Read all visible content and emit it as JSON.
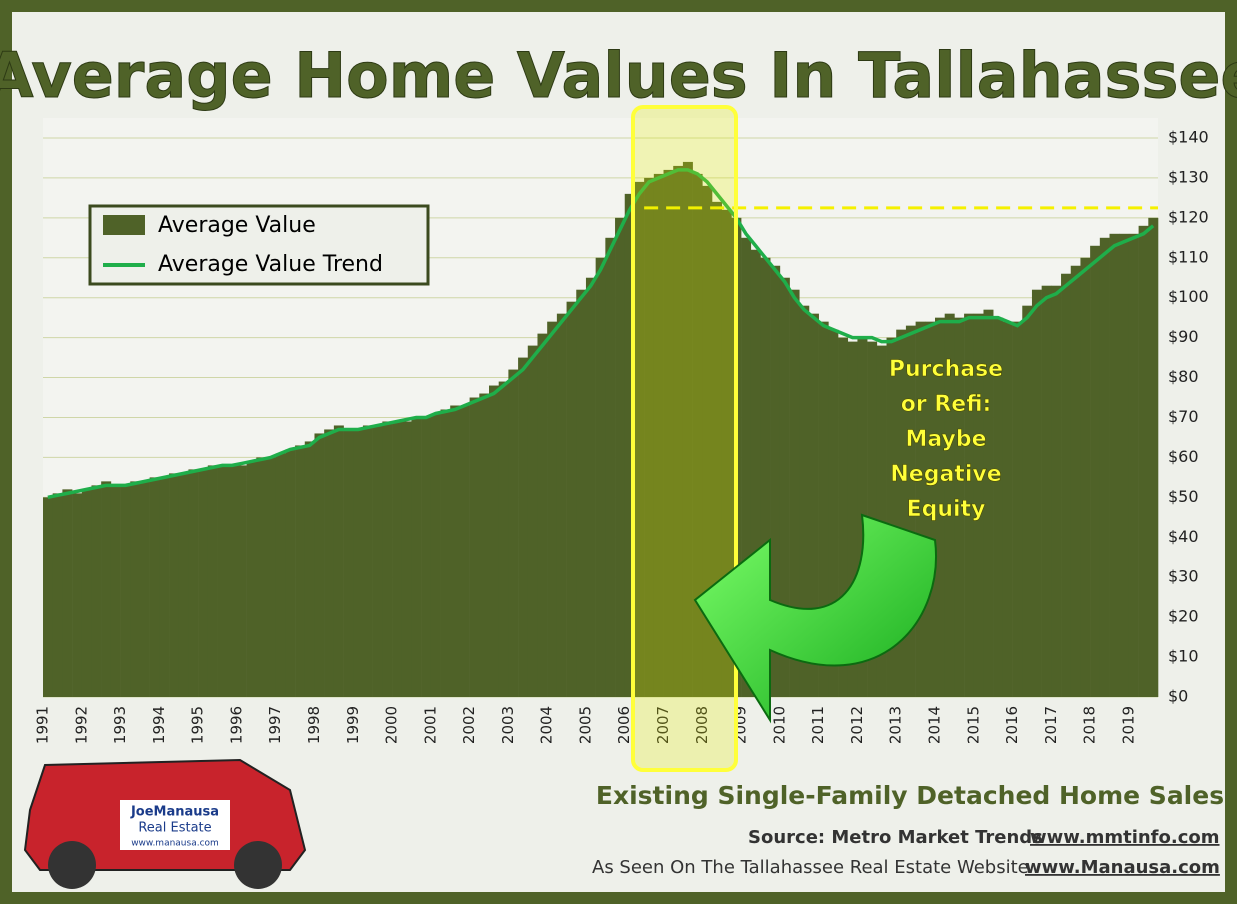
{
  "chart_data": {
    "type": "bar",
    "title": "Average Home Values In Tallahassee",
    "subtitle": "Existing Single-Family Detached Home Sales",
    "source": [
      "Source:  Metro Market Trends",
      "www.mmtinfo.com"
    ],
    "website": [
      "As Seen On The Tallahassee Real Estate Website",
      "www.Manausa.com"
    ],
    "annotation": [
      "Purchase",
      "or Refi:",
      "Maybe",
      "Negative",
      "Equity"
    ],
    "logo": [
      "JoeManausa",
      "Real Estate",
      "www.manausa.com"
    ],
    "x": [
      1991,
      1991.25,
      1991.5,
      1991.75,
      1992,
      1992.25,
      1992.5,
      1992.75,
      1993,
      1993.25,
      1993.5,
      1993.75,
      1994,
      1994.25,
      1994.5,
      1994.75,
      1995,
      1995.25,
      1995.5,
      1995.75,
      1996,
      1996.25,
      1996.5,
      1996.75,
      1997,
      1997.25,
      1997.5,
      1997.75,
      1998,
      1998.25,
      1998.5,
      1998.75,
      1999,
      1999.25,
      1999.5,
      1999.75,
      2000,
      2000.25,
      2000.5,
      2000.75,
      2001,
      2001.25,
      2001.5,
      2001.75,
      2002,
      2002.25,
      2002.5,
      2002.75,
      2003,
      2003.25,
      2003.5,
      2003.75,
      2004,
      2004.25,
      2004.5,
      2004.75,
      2005,
      2005.25,
      2005.5,
      2005.75,
      2006,
      2006.25,
      2006.5,
      2006.75,
      2007,
      2007.25,
      2007.5,
      2007.75,
      2008,
      2008.25,
      2008.5,
      2008.75,
      2009,
      2009.25,
      2009.5,
      2009.75,
      2010,
      2010.25,
      2010.5,
      2010.75,
      2011,
      2011.25,
      2011.5,
      2011.75,
      2012,
      2012.25,
      2012.5,
      2012.75,
      2013,
      2013.25,
      2013.5,
      2013.75,
      2014,
      2014.25,
      2014.5,
      2014.75,
      2015,
      2015.25,
      2015.5,
      2015.75,
      2016,
      2016.25,
      2016.5,
      2016.75,
      2017,
      2017.25,
      2017.5,
      2017.75,
      2018,
      2018.25,
      2018.5,
      2018.75,
      2019,
      2019.25,
      2019.5
    ],
    "series": [
      {
        "name": "Average Value",
        "color": "#4f6228",
        "values": [
          50,
          51,
          52,
          51,
          52,
          53,
          54,
          53,
          53,
          54,
          54,
          55,
          55,
          56,
          56,
          57,
          57,
          58,
          58,
          58,
          58,
          59,
          60,
          60,
          61,
          62,
          63,
          64,
          66,
          67,
          68,
          67,
          67,
          68,
          68,
          69,
          69,
          69,
          70,
          70,
          71,
          72,
          73,
          73,
          75,
          76,
          78,
          79,
          82,
          85,
          88,
          91,
          94,
          96,
          99,
          102,
          105,
          110,
          115,
          120,
          126,
          129,
          130,
          131,
          132,
          133,
          134,
          131,
          128,
          124,
          122,
          120,
          115,
          112,
          110,
          108,
          105,
          102,
          98,
          96,
          94,
          92,
          90,
          89,
          90,
          89,
          88,
          90,
          92,
          93,
          94,
          94,
          95,
          96,
          95,
          96,
          96,
          97,
          95,
          94,
          94,
          98,
          102,
          103,
          103,
          106,
          108,
          110,
          113,
          115,
          116,
          116,
          116,
          118,
          120
        ]
      },
      {
        "name": "Average Value Trend",
        "color": "#1fae4a",
        "type": "line",
        "values": [
          50,
          50.5,
          51,
          51.5,
          52,
          52.5,
          53,
          53,
          53,
          53.5,
          54,
          54.5,
          55,
          55.5,
          56,
          56.5,
          57,
          57.5,
          58,
          58,
          58.5,
          59,
          59.5,
          60,
          61,
          62,
          62.5,
          63,
          65,
          66,
          67,
          67,
          67,
          67.5,
          68,
          68.5,
          69,
          69.5,
          70,
          70,
          71,
          71.5,
          72,
          73,
          74,
          75,
          76,
          78,
          80,
          82,
          85,
          88,
          91,
          94,
          97,
          100,
          103,
          107,
          112,
          117,
          122,
          126,
          129,
          130,
          131,
          132,
          132,
          131,
          129,
          126,
          123,
          120,
          116,
          113,
          110,
          107,
          104,
          100,
          97,
          95,
          93,
          92,
          91,
          90,
          90,
          90,
          89,
          89,
          90,
          91,
          92,
          93,
          94,
          94,
          94,
          95,
          95,
          95,
          95,
          94,
          93,
          95,
          98,
          100,
          101,
          103,
          105,
          107,
          109,
          111,
          113,
          114,
          115,
          116,
          118
        ]
      }
    ],
    "hline": 122.5,
    "xlim": [
      1991,
      2019.75
    ],
    "xticks": [
      1991,
      1992,
      1993,
      1994,
      1995,
      1996,
      1997,
      1998,
      1999,
      2000,
      2001,
      2002,
      2003,
      2004,
      2005,
      2006,
      2007,
      2008,
      2009,
      2010,
      2011,
      2012,
      2013,
      2014,
      2015,
      2016,
      2017,
      2018,
      2019
    ],
    "ylim": [
      0,
      145
    ],
    "yticks": [
      {
        "value": 0,
        "label": "$0"
      },
      {
        "value": 10,
        "label": "$10"
      },
      {
        "value": 20,
        "label": "$20"
      },
      {
        "value": 30,
        "label": "$30"
      },
      {
        "value": 40,
        "label": "$40"
      },
      {
        "value": 50,
        "label": "$50"
      },
      {
        "value": 60,
        "label": "$60"
      },
      {
        "value": 70,
        "label": "$70"
      },
      {
        "value": 80,
        "label": "$80"
      },
      {
        "value": 90,
        "label": "$90"
      },
      {
        "value": 100,
        "label": "$100"
      },
      {
        "value": 110,
        "label": "$110"
      },
      {
        "value": 120,
        "label": "$120"
      },
      {
        "value": 130,
        "label": "$130"
      },
      {
        "value": 140,
        "label": "$140"
      }
    ],
    "grid": true
  }
}
